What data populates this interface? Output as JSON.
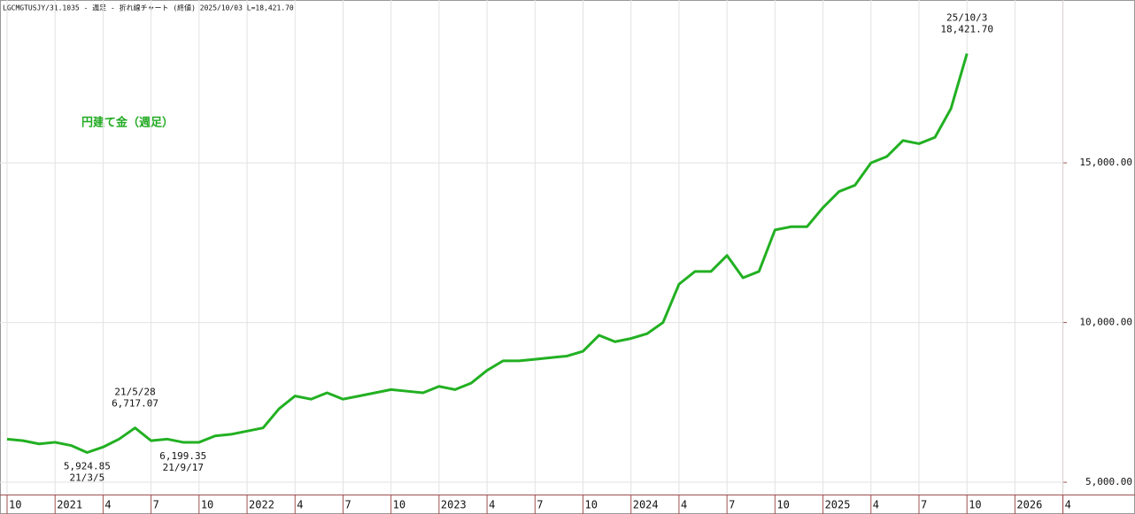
{
  "chart_data": {
    "type": "line",
    "header": "LGCMGTUSJY/31.1035 - 週足 - 折れ線チャート (終値)  2025/10/03 L=18,421.70",
    "label": "円建て金（週足）",
    "x": [
      "2020-10",
      "2020-11",
      "2020-12",
      "2021-01",
      "2021-02",
      "2021-03",
      "2021-04",
      "2021-05",
      "2021-06",
      "2021-07",
      "2021-08",
      "2021-09",
      "2021-10",
      "2021-11",
      "2021-12",
      "2022-01",
      "2022-02",
      "2022-03",
      "2022-04",
      "2022-05",
      "2022-06",
      "2022-07",
      "2022-08",
      "2022-09",
      "2022-10",
      "2022-11",
      "2022-12",
      "2023-01",
      "2023-02",
      "2023-03",
      "2023-04",
      "2023-05",
      "2023-06",
      "2023-07",
      "2023-08",
      "2023-09",
      "2023-10",
      "2023-11",
      "2023-12",
      "2024-01",
      "2024-02",
      "2024-03",
      "2024-04",
      "2024-05",
      "2024-06",
      "2024-07",
      "2024-08",
      "2024-09",
      "2024-10",
      "2024-11",
      "2024-12",
      "2025-01",
      "2025-02",
      "2025-03",
      "2025-04",
      "2025-05",
      "2025-06",
      "2025-07",
      "2025-08",
      "2025-09",
      "2025-10"
    ],
    "series": [
      {
        "name": "円建て金",
        "color": "#22b022",
        "values": [
          6350,
          6300,
          6200,
          6250,
          6150,
          5930,
          6100,
          6350,
          6700,
          6300,
          6350,
          6250,
          6250,
          6450,
          6500,
          6600,
          6700,
          7300,
          7700,
          7600,
          7800,
          7600,
          7700,
          7800,
          7900,
          7850,
          7800,
          8000,
          7900,
          8100,
          8500,
          8800,
          8800,
          8850,
          8900,
          8950,
          9100,
          9600,
          9400,
          9500,
          9650,
          10000,
          11200,
          11600,
          11600,
          12100,
          11400,
          11600,
          12900,
          13000,
          13000,
          13600,
          14100,
          14300,
          15000,
          15200,
          15700,
          15600,
          15800,
          16700,
          18421.7
        ]
      }
    ],
    "ylim": [
      4780,
      20100
    ],
    "yticks": [
      {
        "value": 5000,
        "label": "5,000.00"
      },
      {
        "value": 10000,
        "label": "10,000.00"
      },
      {
        "value": 15000,
        "label": "15,000.00"
      }
    ],
    "xticks": [
      {
        "value": "2020-10",
        "label": "10"
      },
      {
        "value": "2021-01",
        "label": "2021"
      },
      {
        "value": "2021-04",
        "label": "4"
      },
      {
        "value": "2021-07",
        "label": "7"
      },
      {
        "value": "2021-10",
        "label": "10"
      },
      {
        "value": "2022-01",
        "label": "2022"
      },
      {
        "value": "2022-04",
        "label": "4"
      },
      {
        "value": "2022-07",
        "label": "7"
      },
      {
        "value": "2022-10",
        "label": "10"
      },
      {
        "value": "2023-01",
        "label": "2023"
      },
      {
        "value": "2023-04",
        "label": "4"
      },
      {
        "value": "2023-07",
        "label": "7"
      },
      {
        "value": "2023-10",
        "label": "10"
      },
      {
        "value": "2024-01",
        "label": "2024"
      },
      {
        "value": "2024-04",
        "label": "4"
      },
      {
        "value": "2024-07",
        "label": "7"
      },
      {
        "value": "2024-10",
        "label": "10"
      },
      {
        "value": "2025-01",
        "label": "2025"
      },
      {
        "value": "2025-04",
        "label": "4"
      },
      {
        "value": "2025-07",
        "label": "7"
      },
      {
        "value": "2025-10",
        "label": "10"
      },
      {
        "value": "2026-01",
        "label": "2026"
      },
      {
        "value": "2026-04",
        "label": "4"
      }
    ],
    "xlim": [
      "2020-10",
      "2026-04"
    ],
    "grid": true,
    "annotations": [
      {
        "x": "2021-06",
        "lines": [
          "21/5/28",
          "6,717.07"
        ],
        "position": "above"
      },
      {
        "x": "2021-03",
        "lines": [
          "5,924.85",
          "21/3/5"
        ],
        "position": "below"
      },
      {
        "x": "2021-09",
        "lines": [
          "6,199.35",
          "21/9/17"
        ],
        "position": "below"
      },
      {
        "x": "2025-10",
        "lines": [
          "25/10/3",
          "18,421.70"
        ],
        "position": "above"
      }
    ]
  }
}
